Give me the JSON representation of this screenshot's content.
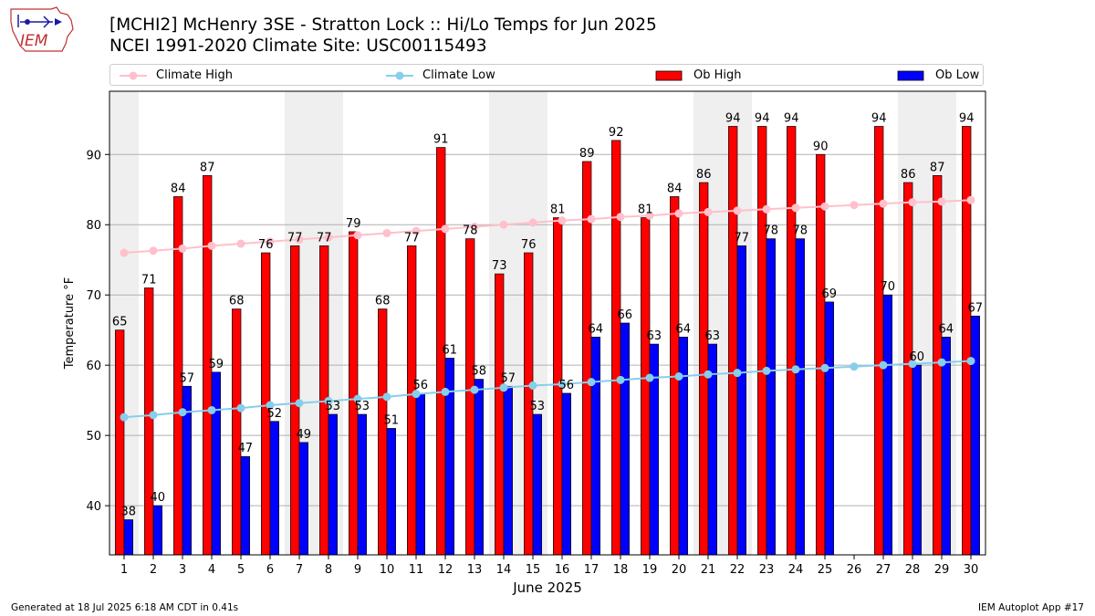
{
  "title_line1": "[MCHI2] McHenry 3SE - Stratton Lock :: Hi/Lo Temps for Jun 2025",
  "title_line2": "NCEI 1991-2020 Climate Site: USC00115493",
  "logo_text": "IEM",
  "footer_left": "Generated at 18 Jul 2025 6:18 AM CDT in 0.41s",
  "footer_right": "IEM Autoplot App #17",
  "colors": {
    "ob_high": "#ff0000",
    "ob_low": "#0000ff",
    "climate_high": "#ffc0cb",
    "climate_low": "#87ceeb",
    "weekend_shade": "#efefef",
    "grid": "#b0b0b0"
  },
  "chart_data": {
    "type": "bar",
    "xlabel": "June 2025",
    "ylabel": "Temperature °F",
    "ylim": [
      33,
      99
    ],
    "yticks": [
      40,
      50,
      60,
      70,
      80,
      90
    ],
    "grid": "horizontal",
    "legend_position": "top",
    "weekend_shading_days": [
      1,
      7,
      8,
      14,
      15,
      21,
      22,
      28,
      29
    ],
    "categories": [
      "1",
      "2",
      "3",
      "4",
      "5",
      "6",
      "7",
      "8",
      "9",
      "10",
      "11",
      "12",
      "13",
      "14",
      "15",
      "16",
      "17",
      "18",
      "19",
      "20",
      "21",
      "22",
      "23",
      "24",
      "25",
      "26",
      "27",
      "28",
      "29",
      "30"
    ],
    "series": [
      {
        "name": "Climate High",
        "kind": "line",
        "values": [
          76.0,
          76.3,
          76.6,
          77.0,
          77.3,
          77.6,
          77.9,
          78.2,
          78.5,
          78.8,
          79.1,
          79.4,
          79.7,
          80.0,
          80.3,
          80.6,
          80.8,
          81.1,
          81.3,
          81.6,
          81.8,
          82.0,
          82.2,
          82.4,
          82.6,
          82.8,
          83.0,
          83.2,
          83.3,
          83.5
        ]
      },
      {
        "name": "Climate Low",
        "kind": "line",
        "values": [
          52.6,
          52.9,
          53.3,
          53.6,
          53.9,
          54.3,
          54.6,
          54.9,
          55.2,
          55.5,
          55.9,
          56.2,
          56.5,
          56.8,
          57.1,
          57.3,
          57.6,
          57.9,
          58.2,
          58.4,
          58.7,
          58.9,
          59.2,
          59.4,
          59.6,
          59.8,
          60.0,
          60.2,
          60.4,
          60.6
        ]
      },
      {
        "name": "Ob High",
        "kind": "bar",
        "values": [
          65,
          71,
          84,
          87,
          68,
          76,
          77,
          77,
          79,
          68,
          77,
          91,
          78,
          73,
          76,
          81,
          89,
          92,
          81,
          84,
          86,
          94,
          94,
          94,
          90,
          null,
          94,
          86,
          87,
          94
        ]
      },
      {
        "name": "Ob Low",
        "kind": "bar",
        "values": [
          38,
          40,
          57,
          59,
          47,
          52,
          49,
          53,
          53,
          51,
          56,
          61,
          58,
          57,
          53,
          56,
          64,
          66,
          63,
          64,
          63,
          77,
          78,
          78,
          69,
          null,
          70,
          60,
          64,
          67
        ]
      }
    ]
  }
}
